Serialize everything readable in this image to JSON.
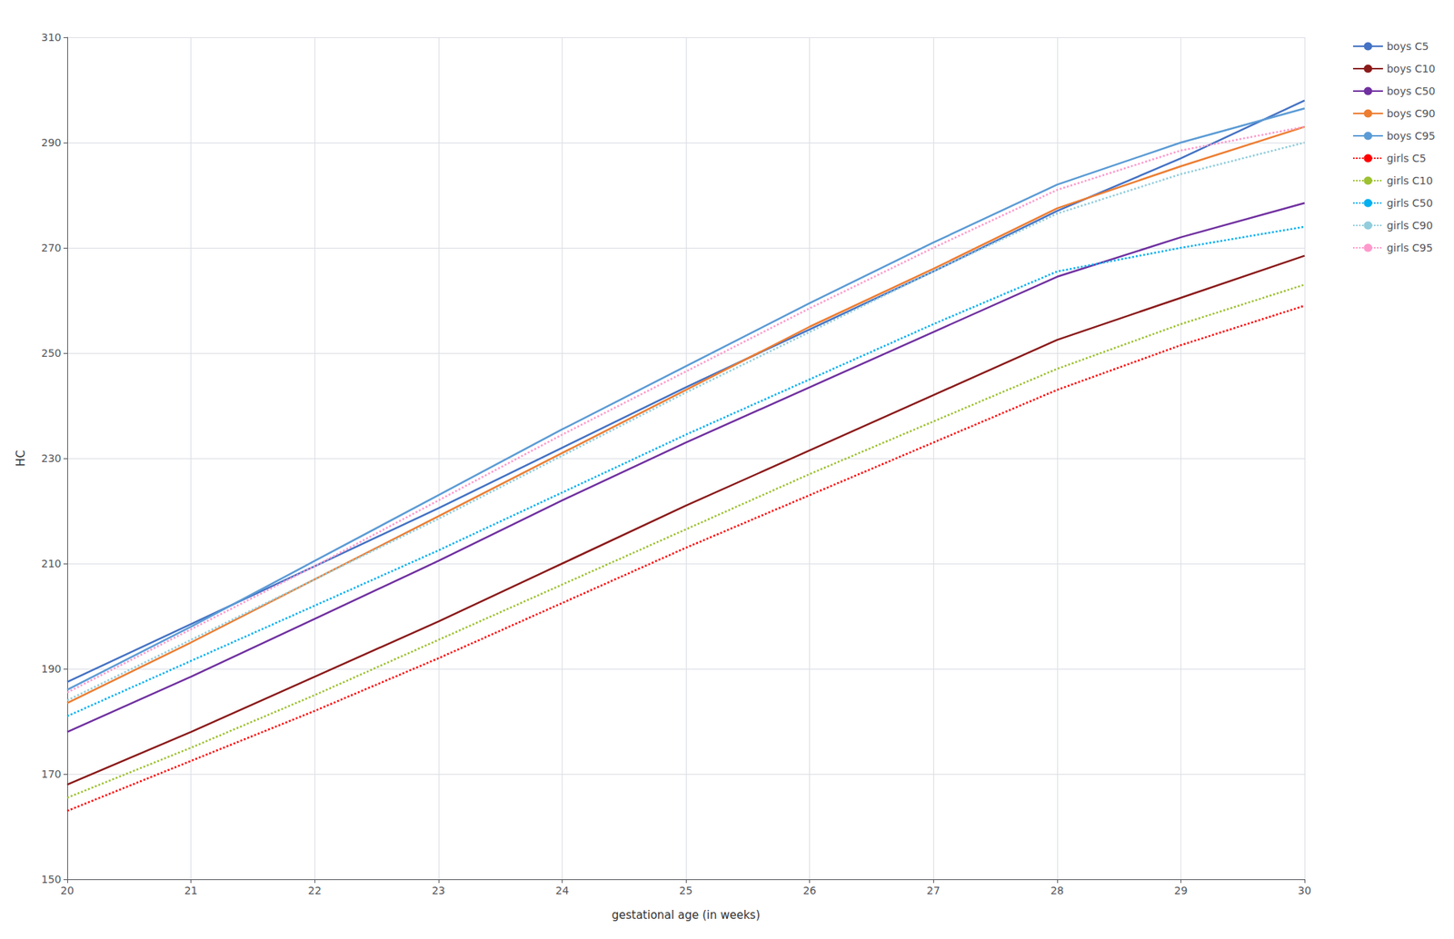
{
  "chart_data": {
    "type": "line",
    "xlabel": "gestational age (in weeks)",
    "ylabel": "HC",
    "x": [
      20,
      21,
      22,
      23,
      24,
      25,
      26,
      27,
      28,
      29,
      30
    ],
    "xlim": [
      20,
      30
    ],
    "ylim": [
      150,
      310
    ],
    "xticks": [
      20,
      21,
      22,
      23,
      24,
      25,
      26,
      27,
      28,
      29,
      30
    ],
    "yticks": [
      150,
      170,
      190,
      210,
      230,
      250,
      270,
      290,
      310
    ],
    "grid": true,
    "legend": "right",
    "series": [
      {
        "name": "boys C5",
        "color": "#4472C4",
        "line_style": "solid",
        "values": [
          187.5,
          198.5,
          209.5,
          220.5,
          232.0,
          243.5,
          254.5,
          265.5,
          277.0,
          287.0,
          298.0
        ]
      },
      {
        "name": "boys C10",
        "color": "#8B1A1A",
        "line_style": "solid",
        "values": [
          168.0,
          178.0,
          188.5,
          199.0,
          210.0,
          221.0,
          231.5,
          242.0,
          252.5,
          260.5,
          268.5
        ]
      },
      {
        "name": "boys C50",
        "color": "#7030A0",
        "line_style": "solid",
        "values": [
          178.0,
          188.5,
          199.5,
          210.5,
          222.0,
          233.0,
          243.5,
          254.0,
          264.5,
          272.0,
          278.5
        ]
      },
      {
        "name": "boys C90",
        "color": "#ED7D31",
        "line_style": "solid",
        "values": [
          183.5,
          195.0,
          207.0,
          219.0,
          231.0,
          243.0,
          255.0,
          266.0,
          277.5,
          285.5,
          293.0
        ]
      },
      {
        "name": "boys C95",
        "color": "#5B9BD5",
        "line_style": "solid",
        "values": [
          186.0,
          198.0,
          210.5,
          223.0,
          235.5,
          247.5,
          259.5,
          271.0,
          282.0,
          290.0,
          296.5
        ]
      },
      {
        "name": "girls C5",
        "color": "#FF0000",
        "line_style": "dotted",
        "values": [
          163.0,
          172.5,
          182.0,
          192.0,
          202.5,
          213.0,
          223.0,
          233.0,
          243.0,
          251.5,
          259.0
        ]
      },
      {
        "name": "girls C10",
        "color": "#9DC130",
        "line_style": "dotted",
        "values": [
          165.5,
          175.0,
          185.0,
          195.5,
          206.0,
          216.5,
          227.0,
          237.0,
          247.0,
          255.5,
          263.0
        ]
      },
      {
        "name": "girls C50",
        "color": "#00B0F0",
        "line_style": "dotted",
        "values": [
          181.0,
          191.5,
          202.0,
          212.5,
          223.5,
          234.5,
          245.0,
          255.5,
          265.5,
          270.0,
          274.0
        ]
      },
      {
        "name": "girls C90",
        "color": "#92CDDC",
        "line_style": "dotted",
        "values": [
          184.0,
          195.5,
          207.0,
          218.5,
          230.5,
          242.5,
          254.0,
          265.5,
          276.5,
          284.0,
          290.0
        ]
      },
      {
        "name": "girls C95",
        "color": "#FF99CC",
        "line_style": "dotted",
        "values": [
          185.5,
          197.5,
          209.5,
          222.0,
          234.5,
          246.5,
          258.5,
          270.0,
          281.0,
          288.5,
          293.0
        ]
      }
    ]
  }
}
